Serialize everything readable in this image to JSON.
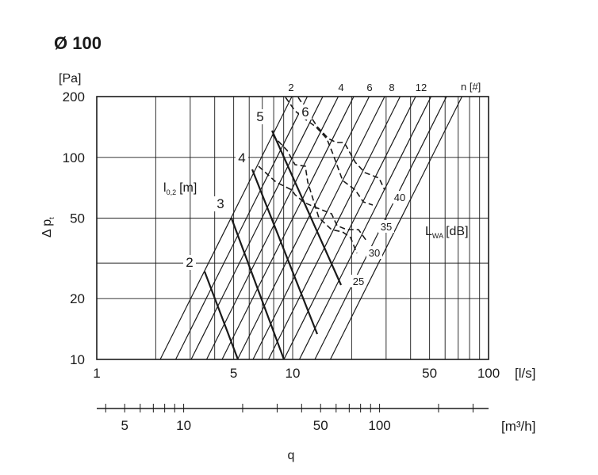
{
  "chart_data": {
    "type": "line",
    "title": "Ø 100",
    "x_axis": {
      "scale": "log",
      "unit_label": "[l/s]",
      "range": [
        1,
        100
      ],
      "tick_labels": [
        "1",
        "5",
        "10",
        "50",
        "100"
      ]
    },
    "y_axis": {
      "scale": "log",
      "unit_label": "[Pa]",
      "symbol": "Δ p",
      "symbol_sub": "t",
      "range": [
        10,
        200
      ],
      "tick_labels": [
        "10",
        "20",
        "50",
        "100",
        "200"
      ]
    },
    "secondary_x_axis": {
      "unit_label": "[m³/h]",
      "tick_labels": [
        "5",
        "10",
        "50",
        "100"
      ]
    },
    "quantity_label": "q",
    "n_series": {
      "label": "n [#]",
      "values": [
        "2",
        "4",
        "6",
        "8",
        "12"
      ]
    },
    "throw_series": {
      "label": "l",
      "label_sub": "0,2",
      "label_unit": "[m]",
      "values": [
        "2",
        "3",
        "4",
        "5",
        "6"
      ]
    },
    "sound_series": {
      "label": "L",
      "label_sub": "WA",
      "label_unit": "[dB]",
      "values": [
        "25",
        "30",
        "35",
        "40"
      ]
    }
  }
}
